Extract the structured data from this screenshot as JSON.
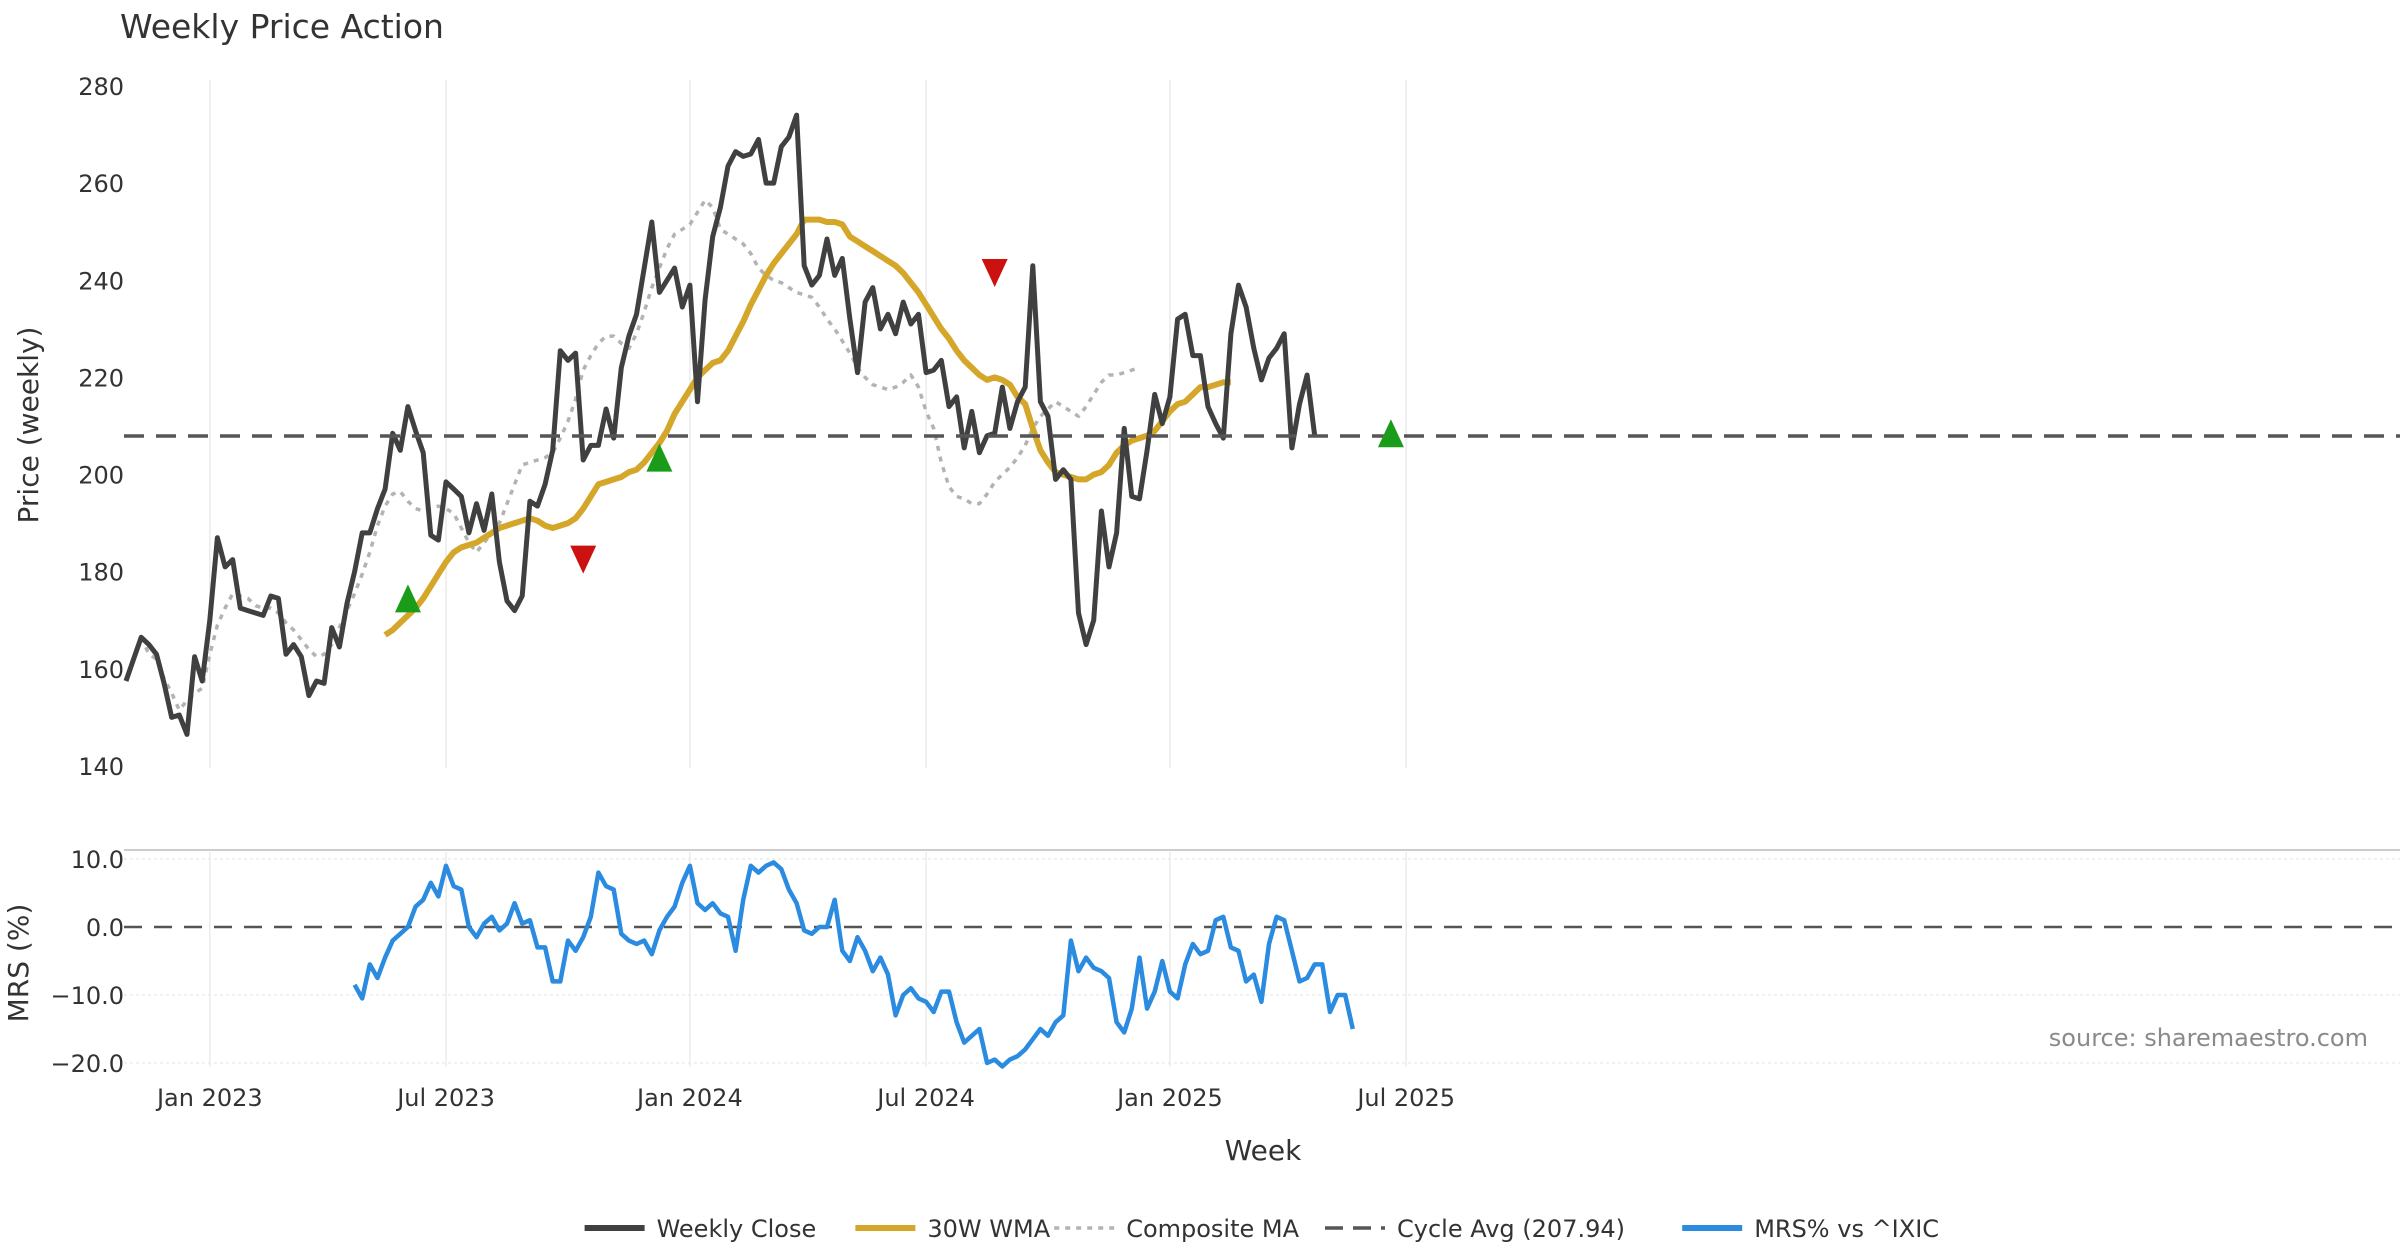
{
  "chart_data": {
    "type": "line",
    "title": "Weekly Price Action",
    "source": "source: sharemaestro.com",
    "xlabel": "Week",
    "x_ticks": [
      "Jan 2023",
      "Jul 2023",
      "Jan 2024",
      "Jul 2024",
      "Jan 2025",
      "Jul 2025"
    ],
    "x_tick_weeks": [
      11,
      42,
      74,
      105,
      137,
      168
    ],
    "price_panel": {
      "ylabel": "Price (weekly)",
      "ylim": [
        140,
        280
      ],
      "y_ticks": [
        "140",
        "160",
        "180",
        "200",
        "220",
        "240",
        "260",
        "280"
      ],
      "y_tick_values": [
        140,
        160,
        180,
        200,
        220,
        240,
        260,
        280
      ]
    },
    "mrs_panel": {
      "ylabel": "MRS (%)",
      "ylim": [
        -21,
        11
      ],
      "y_ticks": [
        "10.0",
        "0.0",
        "−10.0",
        "−20.0"
      ],
      "y_tick_values": [
        10,
        0,
        -10,
        -20
      ]
    },
    "cycle_avg": 207.94,
    "series": [
      {
        "name": "Weekly Close",
        "color": "#404040",
        "start_week": 0,
        "values": [
          157.5,
          162,
          166.5,
          165,
          163,
          157,
          150,
          150.5,
          146.5,
          162.5,
          157.5,
          170,
          187,
          181,
          182.5,
          172.5,
          172,
          171.5,
          171,
          175,
          174.5,
          163,
          165,
          162.5,
          154.5,
          157.5,
          157,
          168.5,
          164.5,
          173.5,
          180,
          188,
          188,
          193,
          197,
          208.5,
          205,
          214,
          209,
          204.5,
          187.5,
          186.5,
          198.5,
          197,
          195.5,
          188,
          194,
          188.5,
          196,
          182,
          174,
          172,
          175,
          194.5,
          193.5,
          198,
          205,
          225.5,
          223.5,
          225,
          203,
          206,
          206,
          213.5,
          207.5,
          222,
          228.5,
          233,
          242.5,
          252,
          237.5,
          240,
          242.5,
          234.5,
          239,
          215,
          236,
          249,
          255,
          263.5,
          266.5,
          265.5,
          266,
          269,
          260,
          260,
          267.5,
          269.5,
          274,
          243,
          239,
          241,
          248.5,
          241,
          244.5,
          232,
          221,
          235.5,
          238.5,
          230,
          233,
          229,
          235.5,
          231,
          233,
          221,
          221.5,
          223.5,
          214,
          216,
          205.5,
          213,
          204.5,
          208,
          208.5,
          218,
          209.5,
          215,
          218,
          243,
          215,
          212,
          199,
          201,
          199,
          171.5,
          165,
          170,
          192.5,
          181,
          188,
          209.5,
          195.5,
          195,
          205,
          216.5,
          210.5,
          216,
          232,
          233,
          224.5,
          224.5,
          214,
          210.5,
          207.5,
          229,
          239,
          234.5,
          226,
          219.5,
          224,
          226,
          229,
          205.5,
          214.5,
          220.5,
          208
        ]
      },
      {
        "name": "30W WMA",
        "color": "#d4a62a",
        "start_week": 34,
        "values": [
          167,
          168,
          169.5,
          171,
          172.5,
          174.5,
          177,
          179.5,
          182,
          184,
          185,
          185.5,
          186,
          187,
          188,
          189,
          189.5,
          190,
          190.5,
          191,
          190.5,
          189.5,
          189,
          189.5,
          190,
          191,
          193,
          195.5,
          198,
          198.5,
          199,
          199.5,
          200.5,
          201,
          202.5,
          204.5,
          206.5,
          209,
          212.5,
          215,
          217.5,
          220,
          221.5,
          223,
          223.5,
          225.5,
          228.5,
          231.5,
          235,
          238,
          241,
          243.5,
          245.5,
          247.5,
          249.5,
          252.5,
          252.5,
          252.5,
          252,
          252,
          251.5,
          249,
          248,
          247,
          246,
          245,
          244,
          243,
          241.5,
          239.5,
          237.5,
          235,
          232.5,
          230,
          228,
          225.5,
          223.5,
          222,
          220.5,
          219.5,
          220,
          219.5,
          218.5,
          216,
          214.5,
          209.5,
          205,
          202.5,
          200.5,
          200,
          199.5,
          199,
          199,
          200,
          200.5,
          202,
          204.5,
          206,
          207,
          207.5,
          208,
          209,
          211,
          213,
          214.5,
          215,
          216.5,
          218,
          218,
          218.5,
          219,
          219
        ]
      },
      {
        "name": "Composite MA",
        "color": "#b3b3b3",
        "dash": "8,6",
        "start_week": 2,
        "values": [
          166.5,
          163,
          162,
          158,
          155,
          151.5,
          153.5,
          155,
          156,
          163,
          169,
          172.5,
          175.5,
          175,
          174.5,
          173,
          172.5,
          172.5,
          171.5,
          169.5,
          168,
          166,
          164,
          162.5,
          163,
          165,
          168.5,
          172,
          175.5,
          179.5,
          184,
          189.5,
          193.5,
          196,
          196.5,
          194.5,
          193,
          192.5,
          193,
          193.5,
          193,
          192,
          189,
          186,
          184,
          186,
          188,
          190,
          194,
          198,
          202,
          202.5,
          203,
          203.5,
          204.5,
          207.5,
          211,
          215.5,
          221.5,
          224.5,
          227,
          228.5,
          228.5,
          227,
          226,
          229,
          233.5,
          238.5,
          242.5,
          246.5,
          249.5,
          250.5,
          251.5,
          254,
          256.5,
          255,
          250.5,
          249.5,
          248.5,
          247.5,
          245.5,
          242.5,
          241,
          240,
          239.5,
          238.5,
          237.5,
          237,
          236.5,
          234.5,
          232,
          230,
          227.5,
          225,
          222,
          220,
          218.5,
          218,
          217.5,
          218,
          219,
          220.5,
          218,
          213,
          209.5,
          202.5,
          197.5,
          195.5,
          195,
          194,
          194,
          196,
          198.5,
          200,
          201.5,
          203.5,
          206,
          209.5,
          212,
          213.5,
          215,
          214,
          213,
          212,
          214,
          216.5,
          219,
          220.5,
          220.5,
          221,
          221.5,
          222
        ]
      },
      {
        "name": "MRS% vs ^IXIC",
        "color": "#2a8be0",
        "start_week": 30,
        "values": [
          -8.5,
          -10.5,
          -5.5,
          -7.5,
          -4.5,
          -2,
          -1,
          0,
          3,
          4,
          6.5,
          4.5,
          9,
          6,
          5.5,
          0,
          -1.5,
          0.5,
          1.5,
          -0.5,
          0.5,
          3.5,
          0.5,
          1,
          -3,
          -3,
          -8,
          -8,
          -2,
          -3.5,
          -1.5,
          1.5,
          8,
          6,
          5.5,
          -1,
          -2,
          -2.5,
          -2,
          -4,
          -0.5,
          1.5,
          3,
          6.5,
          9,
          3.5,
          2.5,
          3.5,
          2,
          1.5,
          -3.5,
          4,
          9,
          8,
          9,
          9.5,
          8.5,
          5.5,
          3.5,
          -0.5,
          -1,
          0,
          0,
          4,
          -3.5,
          -5,
          -1.5,
          -3.5,
          -6.5,
          -4.5,
          -7,
          -13,
          -10,
          -9,
          -10.5,
          -11,
          -12.5,
          -9.5,
          -9.5,
          -14,
          -17,
          -16,
          -15,
          -20,
          -19.5,
          -20.5,
          -19.5,
          -19,
          -18,
          -16.5,
          -15,
          -16,
          -14,
          -13,
          -2,
          -6.5,
          -4.5,
          -6,
          -6.5,
          -7.5,
          -14,
          -15.5,
          -12,
          -4.5,
          -12,
          -9.5,
          -5,
          -9.5,
          -10.5,
          -5.5,
          -2.5,
          -4,
          -3.5,
          1,
          1.5,
          -3,
          -3.5,
          -8,
          -7,
          -11,
          -2.5,
          1.5,
          1,
          -3.5,
          -8,
          -7.5,
          -5.5,
          -5.5,
          -12.5,
          -10,
          -10,
          -15
        ]
      }
    ],
    "signals": [
      {
        "type": "buy",
        "week": 37,
        "value": 174.5
      },
      {
        "type": "sell",
        "week": 60,
        "value": 182.5
      },
      {
        "type": "buy",
        "week": 70,
        "value": 203.5
      },
      {
        "type": "sell",
        "week": 114,
        "value": 241.5
      },
      {
        "type": "buy",
        "week": 166,
        "value": 208.5
      }
    ],
    "signal_colors": {
      "buy": "#1a9c1a",
      "sell": "#cc1111"
    },
    "legend": [
      {
        "label": "Weekly Close",
        "color": "#404040",
        "style": "solid"
      },
      {
        "label": "30W WMA",
        "color": "#d4a62a",
        "style": "solid"
      },
      {
        "label": "Composite MA",
        "color": "#b3b3b3",
        "style": "dotted"
      },
      {
        "label": "Cycle Avg (207.94)",
        "color": "#555555",
        "style": "dashed"
      },
      {
        "label": "MRS% vs ^IXIC",
        "color": "#2a8be0",
        "style": "solid"
      }
    ]
  }
}
